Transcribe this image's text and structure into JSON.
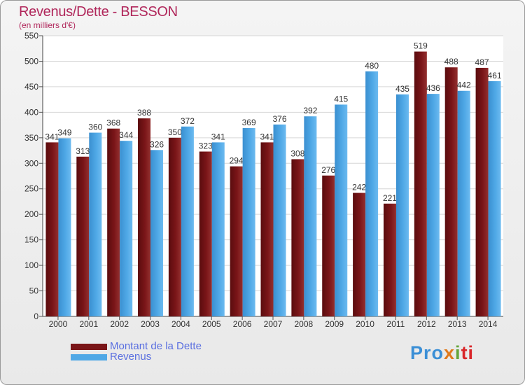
{
  "title": "Revenus/Dette - BESSON",
  "subtitle": "(en milliers d'€)",
  "colors": {
    "dette": "#7a1518",
    "revenus": "#4fa8e6",
    "title": "#b0265a",
    "legend_text": "#5a6fe0"
  },
  "logo": {
    "text": "Proxiti",
    "parts": [
      "Pro",
      "x",
      "i",
      "ti"
    ]
  },
  "chart_data": {
    "type": "bar",
    "categories": [
      "2000",
      "2001",
      "2002",
      "2003",
      "2004",
      "2005",
      "2006",
      "2007",
      "2008",
      "2009",
      "2010",
      "2011",
      "2012",
      "2013",
      "2014"
    ],
    "series": [
      {
        "name": "Montant de la Dette",
        "values": [
          341,
          313,
          368,
          388,
          350,
          323,
          294,
          341,
          308,
          276,
          242,
          221,
          519,
          488,
          487
        ]
      },
      {
        "name": "Revenus",
        "values": [
          349,
          360,
          344,
          326,
          372,
          341,
          369,
          376,
          392,
          415,
          480,
          435,
          436,
          442,
          461
        ]
      }
    ],
    "ylim": [
      0,
      550
    ],
    "yticks": [
      0,
      50,
      100,
      150,
      200,
      250,
      300,
      350,
      400,
      450,
      500,
      550
    ],
    "grid": true,
    "legend": "bottom-left"
  }
}
